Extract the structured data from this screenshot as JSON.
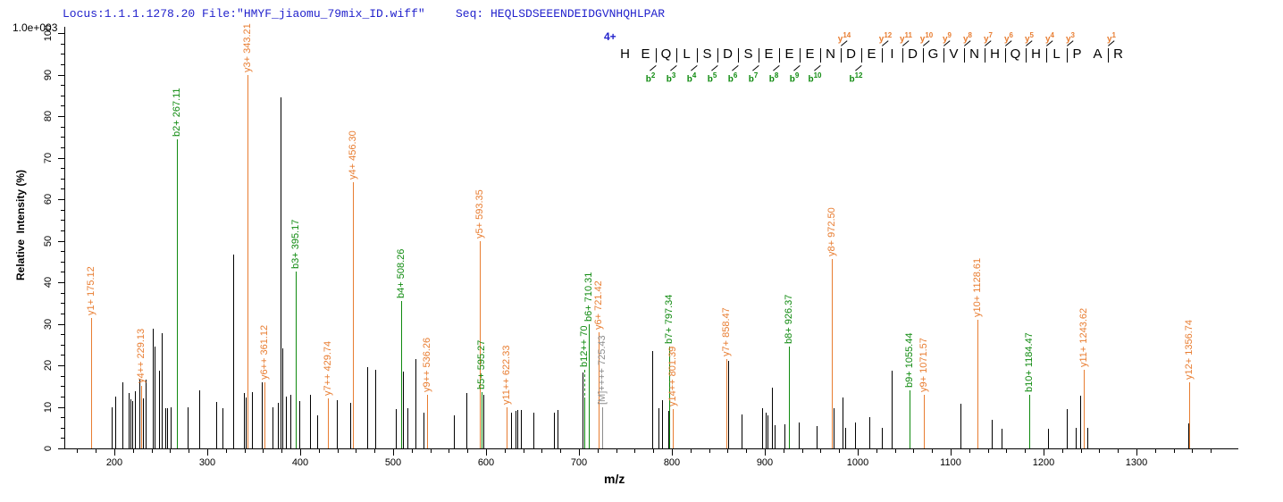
{
  "header": {
    "locus_file": "Locus:1.1.1.1278.20 File:\"HMYF_jiaomu_79mix_ID.wiff\"",
    "seq_line": "Seq: HEQLSDSEEENDEIDGVNHQHLPAR"
  },
  "precursor_charge_label": "4+",
  "y_scale_label": "1.0e+003",
  "colors": {
    "header_blue": "#2222CC",
    "y_ion_orange": "#E87D31",
    "b_ion_green": "#0F8A0F",
    "precursor_gray": "#8C8C8C",
    "unassigned_black": "#000000"
  },
  "sequence_annotation": {
    "residues": [
      "H",
      "E",
      "Q",
      "L",
      "S",
      "D",
      "S",
      "E",
      "E",
      "E",
      "N",
      "D",
      "E",
      "I",
      "D",
      "G",
      "V",
      "N",
      "H",
      "Q",
      "H",
      "L",
      "P",
      "A",
      "R"
    ],
    "y_ions": [
      {
        "series": "y",
        "num": 14,
        "after": 11
      },
      {
        "series": "y",
        "num": 12,
        "after": 13
      },
      {
        "series": "y",
        "num": 11,
        "after": 14
      },
      {
        "series": "y",
        "num": 10,
        "after": 15
      },
      {
        "series": "y",
        "num": 9,
        "after": 16
      },
      {
        "series": "y",
        "num": 8,
        "after": 17
      },
      {
        "series": "y",
        "num": 7,
        "after": 18
      },
      {
        "series": "y",
        "num": 6,
        "after": 19
      },
      {
        "series": "y",
        "num": 5,
        "after": 20
      },
      {
        "series": "y",
        "num": 4,
        "after": 21
      },
      {
        "series": "y",
        "num": 3,
        "after": 22
      },
      {
        "series": "y",
        "num": 1,
        "after": 24
      }
    ],
    "b_ions": [
      {
        "series": "b",
        "num": 2,
        "after": 2
      },
      {
        "series": "b",
        "num": 3,
        "after": 3
      },
      {
        "series": "b",
        "num": 4,
        "after": 4
      },
      {
        "series": "b",
        "num": 5,
        "after": 5
      },
      {
        "series": "b",
        "num": 6,
        "after": 6
      },
      {
        "series": "b",
        "num": 7,
        "after": 7
      },
      {
        "series": "b",
        "num": 8,
        "after": 8
      },
      {
        "series": "b",
        "num": 9,
        "after": 9
      },
      {
        "series": "b",
        "num": 10,
        "after": 10
      },
      {
        "series": "b",
        "num": 12,
        "after": 12
      }
    ]
  },
  "chart_data": {
    "type": "bar",
    "subtype": "ms2-peptide-fragment-spectrum",
    "xlabel": "m/z",
    "ylabel": "Relative  Intensity (%)",
    "y_scale_note": "1.0e+003",
    "xlim": [
      146,
      1409
    ],
    "ylim": [
      0,
      100
    ],
    "x_major_ticks": [
      200,
      300,
      400,
      500,
      600,
      700,
      800,
      900,
      1000,
      1100,
      1200,
      1300
    ],
    "x_minor_step": 20,
    "x_minor_range": [
      160,
      1400
    ],
    "y_major_ticks": [
      0,
      10,
      20,
      30,
      40,
      50,
      60,
      70,
      80,
      90,
      100
    ],
    "y_minor_step": 2.5,
    "grid": false,
    "legend": null,
    "labeled_peaks": [
      {
        "ion": "y",
        "mz": 175.12,
        "pct": 31.5,
        "label": "y1+ 175.12"
      },
      {
        "ion": "y",
        "mz": 229.13,
        "pct": 15,
        "label": "y4++ 229.13"
      },
      {
        "ion": "b",
        "mz": 267.11,
        "pct": 74.5,
        "label": "b2+ 267.11"
      },
      {
        "ion": "y",
        "mz": 343.21,
        "pct": 90,
        "label": "y3+ 343.21"
      },
      {
        "ion": "y",
        "mz": 361.12,
        "pct": 16,
        "label": "y6++ 361.12"
      },
      {
        "ion": "b",
        "mz": 395.17,
        "pct": 42.5,
        "label": "b3+ 395.17"
      },
      {
        "ion": "y",
        "mz": 429.74,
        "pct": 12,
        "label": "y7++ 429.74"
      },
      {
        "ion": "y",
        "mz": 456.3,
        "pct": 64,
        "label": "y4+ 456.30"
      },
      {
        "ion": "b",
        "mz": 508.26,
        "pct": 35.5,
        "label": "b4+ 508.26"
      },
      {
        "ion": "y",
        "mz": 536.26,
        "pct": 13,
        "label": "y9++ 536.26"
      },
      {
        "ion": "y",
        "mz": 593.35,
        "pct": 50,
        "label": "y5+ 593.35"
      },
      {
        "ion": "b",
        "mz": 595.27,
        "pct": 13.5,
        "label": "b5+ 595.27"
      },
      {
        "ion": "y",
        "mz": 622.33,
        "pct": 10,
        "label": "y11++ 622.33"
      },
      {
        "ion": "b",
        "mz": 705.9,
        "pct": 11.6,
        "label": "b12++ 70",
        "label_gap": 34,
        "leader": "dashed"
      },
      {
        "ion": "b",
        "mz": 710.31,
        "pct": 30,
        "label": "b6+ 710.31"
      },
      {
        "ion": "y",
        "mz": 721.42,
        "pct": 28,
        "label": "y6+ 721.42"
      },
      {
        "ion": "precursor",
        "mz": 725.43,
        "pct": 10,
        "label": "[M]++++ 725.43"
      },
      {
        "ion": "b",
        "mz": 797.34,
        "pct": 24.5,
        "label": "b7+ 797.34"
      },
      {
        "ion": "y",
        "mz": 801.39,
        "pct": 9.5,
        "label": "y14++ 801.39"
      },
      {
        "ion": "y",
        "mz": 858.47,
        "pct": 21.5,
        "label": "y7+ 858.47"
      },
      {
        "ion": "b",
        "mz": 926.37,
        "pct": 24.5,
        "label": "b8+ 926.37"
      },
      {
        "ion": "y",
        "mz": 972.5,
        "pct": 45.5,
        "label": "y8+ 972.50"
      },
      {
        "ion": "b",
        "mz": 1055.44,
        "pct": 14,
        "label": "b9+ 1055.44"
      },
      {
        "ion": "y",
        "mz": 1071.57,
        "pct": 13,
        "label": "y9+ 1071.57"
      },
      {
        "ion": "y",
        "mz": 1128.61,
        "pct": 31,
        "label": "y10+ 1128.61"
      },
      {
        "ion": "b",
        "mz": 1184.47,
        "pct": 13,
        "label": "b10+ 1184.47"
      },
      {
        "ion": "y",
        "mz": 1243.62,
        "pct": 19,
        "label": "y11+ 1243.62"
      },
      {
        "ion": "y",
        "mz": 1356.74,
        "pct": 16,
        "label": "y12+ 1356.74"
      }
    ],
    "unassigned_peaks": [
      [
        197,
        10
      ],
      [
        201,
        12.5
      ],
      [
        208.9,
        16
      ],
      [
        215,
        13.3
      ],
      [
        217.5,
        11.8
      ],
      [
        219.2,
        11.5
      ],
      [
        222,
        13.8
      ],
      [
        227,
        16.6
      ],
      [
        230.8,
        12
      ],
      [
        233.7,
        16.6
      ],
      [
        241.3,
        28.8
      ],
      [
        243.3,
        24.5
      ],
      [
        248,
        18.7
      ],
      [
        251,
        27.7
      ],
      [
        254.8,
        9.7
      ],
      [
        256.7,
        9.7
      ],
      [
        260.6,
        10
      ],
      [
        278.8,
        10
      ],
      [
        291.3,
        14
      ],
      [
        309.6,
        11.2
      ],
      [
        316.3,
        9.7
      ],
      [
        327.9,
        46.7
      ],
      [
        339.4,
        13.3
      ],
      [
        341.5,
        12.3
      ],
      [
        348,
        13.5
      ],
      [
        358.5,
        16
      ],
      [
        370,
        10
      ],
      [
        375.5,
        11
      ],
      [
        378.8,
        84.5
      ],
      [
        380.8,
        24
      ],
      [
        384.6,
        12.5
      ],
      [
        389.4,
        13
      ],
      [
        399,
        11.5
      ],
      [
        410.6,
        13
      ],
      [
        418,
        8
      ],
      [
        439.4,
        11.6
      ],
      [
        453.8,
        11
      ],
      [
        472.2,
        19.5
      ],
      [
        480.8,
        19
      ],
      [
        502.9,
        9.5
      ],
      [
        510.6,
        18.5
      ],
      [
        515,
        9.6
      ],
      [
        524,
        21.5
      ],
      [
        532.7,
        8.5
      ],
      [
        565.4,
        8
      ],
      [
        578.8,
        13.3
      ],
      [
        596.8,
        13
      ],
      [
        626.9,
        8.5
      ],
      [
        631.7,
        9
      ],
      [
        634,
        9.3
      ],
      [
        637.5,
        9.3
      ],
      [
        651,
        8.5
      ],
      [
        673,
        8.5
      ],
      [
        676.5,
        9.3
      ],
      [
        703.8,
        18.3
      ],
      [
        778.9,
        23.5
      ],
      [
        785.6,
        9.7
      ],
      [
        789.4,
        11.6
      ],
      [
        795.8,
        9
      ],
      [
        860.4,
        21
      ],
      [
        875,
        8.2
      ],
      [
        897,
        9.7
      ],
      [
        900.5,
        8.6
      ],
      [
        902.5,
        8
      ],
      [
        907.7,
        14.6
      ],
      [
        910.6,
        5.6
      ],
      [
        921.2,
        5.8
      ],
      [
        936.5,
        6.2
      ],
      [
        955.8,
        5.4
      ],
      [
        974,
        9.7
      ],
      [
        983.7,
        12.3
      ],
      [
        986.5,
        5
      ],
      [
        997,
        6.2
      ],
      [
        1012.5,
        7.5
      ],
      [
        1026,
        5
      ],
      [
        1036.5,
        18.7
      ],
      [
        1110.6,
        10.7
      ],
      [
        1144.2,
        6.9
      ],
      [
        1155,
        4.7
      ],
      [
        1205,
        4.7
      ],
      [
        1225,
        9.5
      ],
      [
        1235,
        4.9
      ],
      [
        1239.5,
        12.7
      ],
      [
        1247,
        5
      ],
      [
        1355.9,
        6
      ]
    ]
  }
}
